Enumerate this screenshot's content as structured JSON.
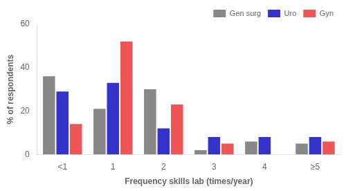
{
  "chart_data": {
    "type": "bar",
    "categories": [
      "<1",
      "1",
      "2",
      "3",
      "4",
      "≥5"
    ],
    "series": [
      {
        "name": "Gen surg",
        "color": "#888888",
        "values": [
          36,
          21,
          30,
          2,
          6,
          5
        ]
      },
      {
        "name": "Uro",
        "color": "#3333cc",
        "values": [
          29,
          33,
          12,
          8,
          8,
          8
        ]
      },
      {
        "name": "Gyn",
        "color": "#ee5555",
        "values": [
          14,
          52,
          23,
          5,
          0,
          6
        ]
      }
    ],
    "xlabel": "Frequency skills lab (times/year)",
    "ylabel": "% of respondents",
    "ylim": [
      0,
      60
    ],
    "yticks": [
      0,
      20,
      40,
      60
    ],
    "grid": false,
    "legend": "upper right"
  }
}
